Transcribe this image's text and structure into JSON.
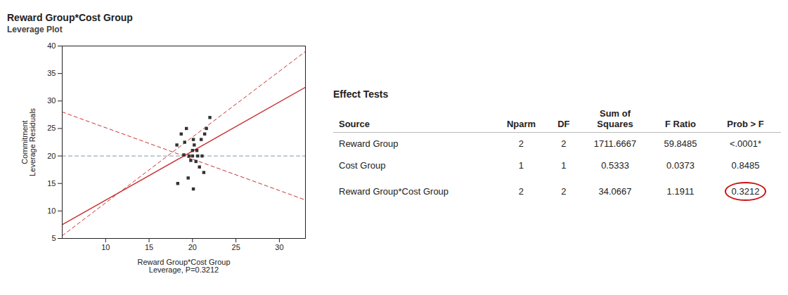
{
  "chart_data": {
    "type": "scatter",
    "title": "Reward Group*Cost Group",
    "subtitle": "Leverage Plot",
    "xlabel": [
      "Reward Group*Cost Group",
      "Leverage, P=0.3212"
    ],
    "ylabel": [
      "Commitment",
      "Leverage Residuals"
    ],
    "xlim": [
      5,
      33
    ],
    "ylim": [
      5,
      40
    ],
    "xticks": [
      10,
      15,
      20,
      25,
      30
    ],
    "yticks": [
      5,
      10,
      15,
      20,
      25,
      30,
      35,
      40
    ],
    "grid": false,
    "series": [
      {
        "type": "line",
        "color": "#7799bb",
        "line_style": "dashed",
        "x": [
          5,
          33
        ],
        "values": [
          20.0,
          20.0
        ]
      },
      {
        "type": "line",
        "color": "#c83232",
        "line_style": "solid",
        "x": [
          5,
          33
        ],
        "values": [
          7.5,
          32.5
        ]
      },
      {
        "type": "line",
        "color": "#c83232",
        "line_style": "dashed",
        "x": [
          5,
          33
        ],
        "values": [
          28.0,
          12.0
        ]
      },
      {
        "type": "line",
        "color": "#c83232",
        "line_style": "dashed",
        "x": [
          5,
          33
        ],
        "values": [
          5.5,
          39.0
        ]
      },
      {
        "type": "scatter",
        "color": "#333333",
        "marker": "square",
        "x": [
          18.2,
          18.7,
          19.0,
          19.1,
          19.3,
          19.5,
          19.6,
          19.8,
          20.0,
          20.0,
          20.1,
          20.2,
          20.4,
          20.5,
          20.6,
          20.8,
          21.0,
          21.1,
          21.3,
          21.6,
          22.0,
          18.3,
          20.1,
          21.4
        ],
        "values": [
          22.0,
          24.0,
          20.2,
          22.5,
          25.0,
          16.0,
          20.0,
          19.2,
          20.0,
          21.0,
          23.0,
          22.0,
          19.0,
          21.0,
          20.0,
          18.0,
          23.0,
          20.0,
          17.0,
          25.0,
          27.0,
          15.0,
          14.0,
          24.0
        ]
      }
    ],
    "table": {
      "title": "Effect Tests",
      "columns": [
        "Source",
        "Nparm",
        "DF",
        "Sum of\nSquares",
        "F Ratio",
        "Prob > F"
      ],
      "rows": [
        [
          "Reward Group",
          "2",
          "2",
          "1711.6667",
          "59.8485",
          "<.0001*"
        ],
        [
          "Cost Group",
          "1",
          "1",
          "0.5333",
          "0.0373",
          "0.8485"
        ],
        [
          "Reward Group*Cost Group",
          "2",
          "2",
          "34.0667",
          "1.1911",
          "0.3212"
        ]
      ],
      "highlight": {
        "row": "Reward Group*Cost Group",
        "column": "Prob > F",
        "color": "#cc1111"
      }
    }
  }
}
